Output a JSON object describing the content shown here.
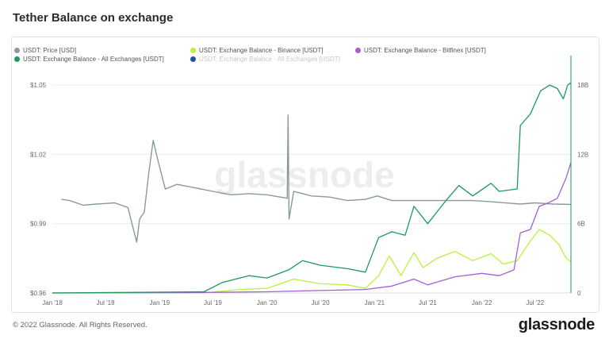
{
  "page": {
    "title": "Tether Balance on exchange",
    "copyright": "© 2022 Glassnode. All Rights Reserved.",
    "logo": "glassnode",
    "watermark": "glassnode"
  },
  "legend": [
    {
      "label": "USDT: Price [USD]",
      "color": "#8a9a9b"
    },
    {
      "label": "USDT: Exchange Balance - Binance [USDT]",
      "color": "#b8f23c"
    },
    {
      "label": "USDT: Exchange Balance - Bitfinex [USDT]",
      "color": "#a260d0"
    },
    {
      "label": "USDT: Exchange Balance - All Exchanges [USDT]",
      "color": "#1a9a5e"
    },
    {
      "label": "USDT: Exchange Balance - All Exchanges [USDT]",
      "color": "#2450a8",
      "muted": true
    }
  ],
  "chart_data": {
    "type": "line",
    "x_ticks": [
      "Jan '18",
      "Jul '18",
      "Jan '19",
      "Jul '19",
      "Jan '20",
      "Jul '20",
      "Jan '21",
      "Jul '21",
      "Jan '22",
      "Jul '22"
    ],
    "x_range": [
      "2018-01-01",
      "2022-10-31"
    ],
    "y_left": {
      "ticks": [
        "$0.96",
        "$0.99",
        "$1.02",
        "$1.05"
      ],
      "range": [
        0.96,
        1.06
      ]
    },
    "y_right": {
      "ticks": [
        "0",
        "6B",
        "12B",
        "18B"
      ],
      "range": [
        0,
        20000000000
      ]
    },
    "grid": true,
    "series": [
      {
        "name": "USDT: Price [USD]",
        "axis": "left",
        "color": "#8a9a9b",
        "points": [
          [
            "2018-02-01",
            1.0005
          ],
          [
            "2018-03-01",
            1.0
          ],
          [
            "2018-04-15",
            0.998
          ],
          [
            "2018-06-01",
            0.9985
          ],
          [
            "2018-08-01",
            0.999
          ],
          [
            "2018-09-15",
            0.997
          ],
          [
            "2018-10-15",
            0.982
          ],
          [
            "2018-10-25",
            0.992
          ],
          [
            "2018-11-10",
            0.995
          ],
          [
            "2018-11-25",
            1.012
          ],
          [
            "2018-12-10",
            1.026
          ],
          [
            "2018-12-25",
            1.018
          ],
          [
            "2019-01-20",
            1.005
          ],
          [
            "2019-03-01",
            1.007
          ],
          [
            "2019-05-01",
            1.0055
          ],
          [
            "2019-07-01",
            1.004
          ],
          [
            "2019-09-01",
            1.0025
          ],
          [
            "2019-11-01",
            1.003
          ],
          [
            "2020-01-01",
            1.0025
          ],
          [
            "2020-03-10",
            1.001
          ],
          [
            "2020-03-13",
            1.037
          ],
          [
            "2020-03-16",
            0.992
          ],
          [
            "2020-04-01",
            1.004
          ],
          [
            "2020-06-01",
            1.002
          ],
          [
            "2020-08-01",
            1.0015
          ],
          [
            "2020-10-01",
            1.0
          ],
          [
            "2020-12-01",
            1.0005
          ],
          [
            "2021-01-10",
            1.002
          ],
          [
            "2021-03-01",
            1.0
          ],
          [
            "2021-06-01",
            1.0
          ],
          [
            "2021-09-01",
            1.0
          ],
          [
            "2021-12-01",
            1.0
          ],
          [
            "2022-02-01",
            0.9995
          ],
          [
            "2022-05-12",
            0.9985
          ],
          [
            "2022-07-01",
            0.999
          ],
          [
            "2022-09-01",
            0.9985
          ],
          [
            "2022-10-31",
            0.9983
          ]
        ]
      },
      {
        "name": "USDT: Exchange Balance - Binance [USDT]",
        "axis": "right",
        "color": "#b8f23c",
        "points": [
          [
            "2018-01-01",
            0
          ],
          [
            "2019-06-01",
            0
          ],
          [
            "2019-10-01",
            300000000
          ],
          [
            "2020-01-01",
            400000000
          ],
          [
            "2020-04-01",
            1200000000
          ],
          [
            "2020-07-01",
            800000000
          ],
          [
            "2020-10-01",
            700000000
          ],
          [
            "2020-12-01",
            400000000
          ],
          [
            "2021-01-15",
            1500000000
          ],
          [
            "2021-02-20",
            3200000000
          ],
          [
            "2021-04-01",
            1500000000
          ],
          [
            "2021-05-15",
            3500000000
          ],
          [
            "2021-06-15",
            2200000000
          ],
          [
            "2021-08-01",
            3000000000
          ],
          [
            "2021-10-01",
            3600000000
          ],
          [
            "2021-12-01",
            2800000000
          ],
          [
            "2022-02-01",
            3400000000
          ],
          [
            "2022-03-15",
            2500000000
          ],
          [
            "2022-05-01",
            2800000000
          ],
          [
            "2022-06-15",
            4500000000
          ],
          [
            "2022-07-15",
            5500000000
          ],
          [
            "2022-08-20",
            5000000000
          ],
          [
            "2022-09-20",
            4200000000
          ],
          [
            "2022-10-15",
            3000000000
          ],
          [
            "2022-10-31",
            2700000000
          ]
        ]
      },
      {
        "name": "USDT: Exchange Balance - Bitfinex [USDT]",
        "axis": "right",
        "color": "#a260d0",
        "points": [
          [
            "2018-01-01",
            0
          ],
          [
            "2019-06-01",
            50000000
          ],
          [
            "2020-01-01",
            100000000
          ],
          [
            "2020-06-01",
            200000000
          ],
          [
            "2020-12-01",
            300000000
          ],
          [
            "2021-03-01",
            600000000
          ],
          [
            "2021-05-15",
            1200000000
          ],
          [
            "2021-07-01",
            700000000
          ],
          [
            "2021-10-01",
            1400000000
          ],
          [
            "2022-01-01",
            1700000000
          ],
          [
            "2022-03-01",
            1500000000
          ],
          [
            "2022-04-20",
            2000000000
          ],
          [
            "2022-05-12",
            5200000000
          ],
          [
            "2022-06-15",
            5500000000
          ],
          [
            "2022-07-15",
            7500000000
          ],
          [
            "2022-08-15",
            7800000000
          ],
          [
            "2022-09-15",
            8200000000
          ],
          [
            "2022-10-15",
            10000000000
          ],
          [
            "2022-10-31",
            11300000000
          ]
        ]
      },
      {
        "name": "USDT: Exchange Balance - All Exchanges [USDT]",
        "axis": "right",
        "color": "#1a9a5e",
        "points": [
          [
            "2018-01-01",
            0
          ],
          [
            "2019-06-01",
            100000000
          ],
          [
            "2019-08-01",
            900000000
          ],
          [
            "2019-11-01",
            1500000000
          ],
          [
            "2020-01-01",
            1300000000
          ],
          [
            "2020-03-15",
            2000000000
          ],
          [
            "2020-05-01",
            2800000000
          ],
          [
            "2020-07-01",
            2400000000
          ],
          [
            "2020-10-01",
            2100000000
          ],
          [
            "2020-12-01",
            1800000000
          ],
          [
            "2021-01-15",
            4800000000
          ],
          [
            "2021-03-01",
            5300000000
          ],
          [
            "2021-04-15",
            5000000000
          ],
          [
            "2021-05-15",
            7500000000
          ],
          [
            "2021-07-01",
            6000000000
          ],
          [
            "2021-09-01",
            8000000000
          ],
          [
            "2021-10-15",
            9300000000
          ],
          [
            "2021-12-01",
            8400000000
          ],
          [
            "2022-02-01",
            9500000000
          ],
          [
            "2022-03-01",
            8800000000
          ],
          [
            "2022-05-01",
            9000000000
          ],
          [
            "2022-05-12",
            14500000000
          ],
          [
            "2022-06-15",
            15500000000
          ],
          [
            "2022-07-20",
            17500000000
          ],
          [
            "2022-08-20",
            18000000000
          ],
          [
            "2022-09-15",
            17700000000
          ],
          [
            "2022-10-05",
            16800000000
          ],
          [
            "2022-10-20",
            18000000000
          ],
          [
            "2022-10-31",
            18200000000
          ]
        ]
      }
    ]
  }
}
